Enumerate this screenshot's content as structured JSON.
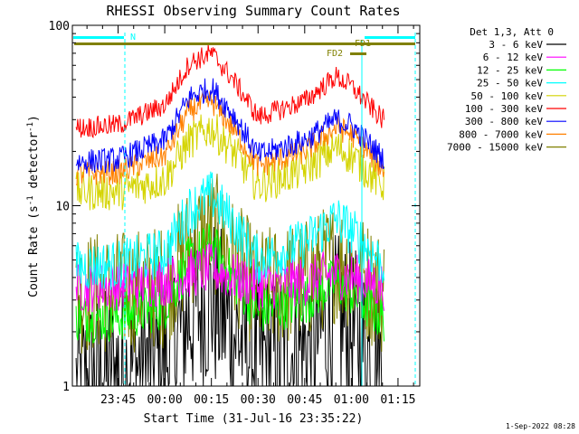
{
  "chart_data": {
    "type": "line",
    "title": "RHESSI Observing Summary Count Rates",
    "xlabel": "Start Time (31-Jul-16 23:35:22)",
    "ylabel": "Count Rate (s⁻¹ detector⁻¹)",
    "ylabel_parts": [
      "Count Rate (s",
      "-1",
      " detector",
      "-1",
      ")"
    ],
    "y_scale": "log",
    "ylim": [
      1,
      100
    ],
    "y_ticks": [
      "1",
      "10",
      "100"
    ],
    "xlim_minutes": [
      -29.7,
      82
    ],
    "x_ticks": [
      {
        "label": "23:45",
        "min": -15
      },
      {
        "label": "00:00",
        "min": 0
      },
      {
        "label": "00:15",
        "min": 15
      },
      {
        "label": "00:30",
        "min": 30
      },
      {
        "label": "00:45",
        "min": 45
      },
      {
        "label": "01:00",
        "min": 60
      },
      {
        "label": "01:15",
        "min": 75
      }
    ],
    "legend_title": "Det 1,3, Att 0",
    "legend_position": "right",
    "series": [
      {
        "name": "3 - 6 keV",
        "color": "#000000",
        "points": [
          [
            -28,
            1.0
          ],
          [
            -15,
            1.2
          ],
          [
            0,
            1.4
          ],
          [
            8,
            2.5
          ],
          [
            15,
            3.0
          ],
          [
            22,
            2.0
          ],
          [
            30,
            1.4
          ],
          [
            45,
            1.6
          ],
          [
            55,
            2.3
          ],
          [
            60,
            2.0
          ],
          [
            70,
            1.2
          ]
        ]
      },
      {
        "name": "6 - 12 keV",
        "color": "#ff00ff",
        "points": [
          [
            -28,
            3.5
          ],
          [
            -15,
            3.6
          ],
          [
            0,
            3.8
          ],
          [
            8,
            4.2
          ],
          [
            15,
            4.5
          ],
          [
            22,
            4.0
          ],
          [
            30,
            3.6
          ],
          [
            45,
            3.8
          ],
          [
            55,
            4.2
          ],
          [
            60,
            4.0
          ],
          [
            70,
            3.6
          ]
        ]
      },
      {
        "name": "12 - 25 keV",
        "color": "#00ff00",
        "points": [
          [
            -28,
            2.4
          ],
          [
            -15,
            2.4
          ],
          [
            0,
            2.8
          ],
          [
            8,
            5.0
          ],
          [
            15,
            6.0
          ],
          [
            22,
            4.0
          ],
          [
            30,
            2.6
          ],
          [
            45,
            3.0
          ],
          [
            55,
            3.8
          ],
          [
            60,
            3.3
          ],
          [
            70,
            2.4
          ]
        ]
      },
      {
        "name": "25 - 50 keV",
        "color": "#00ffff",
        "points": [
          [
            -28,
            4.6
          ],
          [
            -15,
            4.7
          ],
          [
            0,
            5.5
          ],
          [
            8,
            9.5
          ],
          [
            15,
            11.5
          ],
          [
            22,
            8.0
          ],
          [
            30,
            5.0
          ],
          [
            45,
            6.2
          ],
          [
            55,
            8.5
          ],
          [
            60,
            7.2
          ],
          [
            70,
            4.8
          ]
        ]
      },
      {
        "name": "50 - 100 keV",
        "color": "#d4d400",
        "points": [
          [
            -28,
            12
          ],
          [
            -15,
            12
          ],
          [
            0,
            14
          ],
          [
            8,
            23
          ],
          [
            15,
            27
          ],
          [
            22,
            20
          ],
          [
            30,
            13
          ],
          [
            45,
            16
          ],
          [
            55,
            21
          ],
          [
            60,
            19
          ],
          [
            70,
            13
          ]
        ]
      },
      {
        "name": "100 - 300 keV",
        "color": "#ff0000",
        "points": [
          [
            -28,
            27
          ],
          [
            -15,
            28
          ],
          [
            0,
            36
          ],
          [
            8,
            62
          ],
          [
            15,
            70
          ],
          [
            22,
            50
          ],
          [
            30,
            31
          ],
          [
            45,
            38
          ],
          [
            55,
            52
          ],
          [
            60,
            46
          ],
          [
            70,
            30
          ]
        ]
      },
      {
        "name": "300 - 800 keV",
        "color": "#0000ff",
        "points": [
          [
            -28,
            17.5
          ],
          [
            -15,
            18
          ],
          [
            0,
            23
          ],
          [
            8,
            40
          ],
          [
            15,
            45
          ],
          [
            22,
            32
          ],
          [
            30,
            19
          ],
          [
            45,
            23
          ],
          [
            55,
            30
          ],
          [
            60,
            28
          ],
          [
            70,
            18.5
          ]
        ]
      },
      {
        "name": "800 - 7000 keV",
        "color": "#ff8000",
        "points": [
          [
            -28,
            15
          ],
          [
            -15,
            15.3
          ],
          [
            0,
            19
          ],
          [
            8,
            34
          ],
          [
            15,
            38
          ],
          [
            22,
            27
          ],
          [
            30,
            16.5
          ],
          [
            45,
            20
          ],
          [
            55,
            27
          ],
          [
            60,
            25
          ],
          [
            70,
            16
          ]
        ]
      },
      {
        "name": "7000 - 15000 keV",
        "color": "#808000",
        "points": [
          [
            -28,
            3.3
          ],
          [
            -15,
            3.3
          ],
          [
            0,
            3.6
          ],
          [
            8,
            6.0
          ],
          [
            15,
            7.5
          ],
          [
            22,
            5.0
          ],
          [
            30,
            3.4
          ],
          [
            45,
            3.8
          ],
          [
            55,
            5.0
          ],
          [
            60,
            4.5
          ],
          [
            70,
            3.3
          ]
        ]
      }
    ],
    "flag_bars": [
      {
        "label": "N",
        "color": "#00ffff"
      },
      {
        "label": "",
        "color": "#00ffff"
      },
      {
        "label": "FD1",
        "color": "#808000"
      },
      {
        "label": "FD2",
        "color": "#808000"
      }
    ]
  },
  "timestamp": "1-Sep-2022 08:28"
}
